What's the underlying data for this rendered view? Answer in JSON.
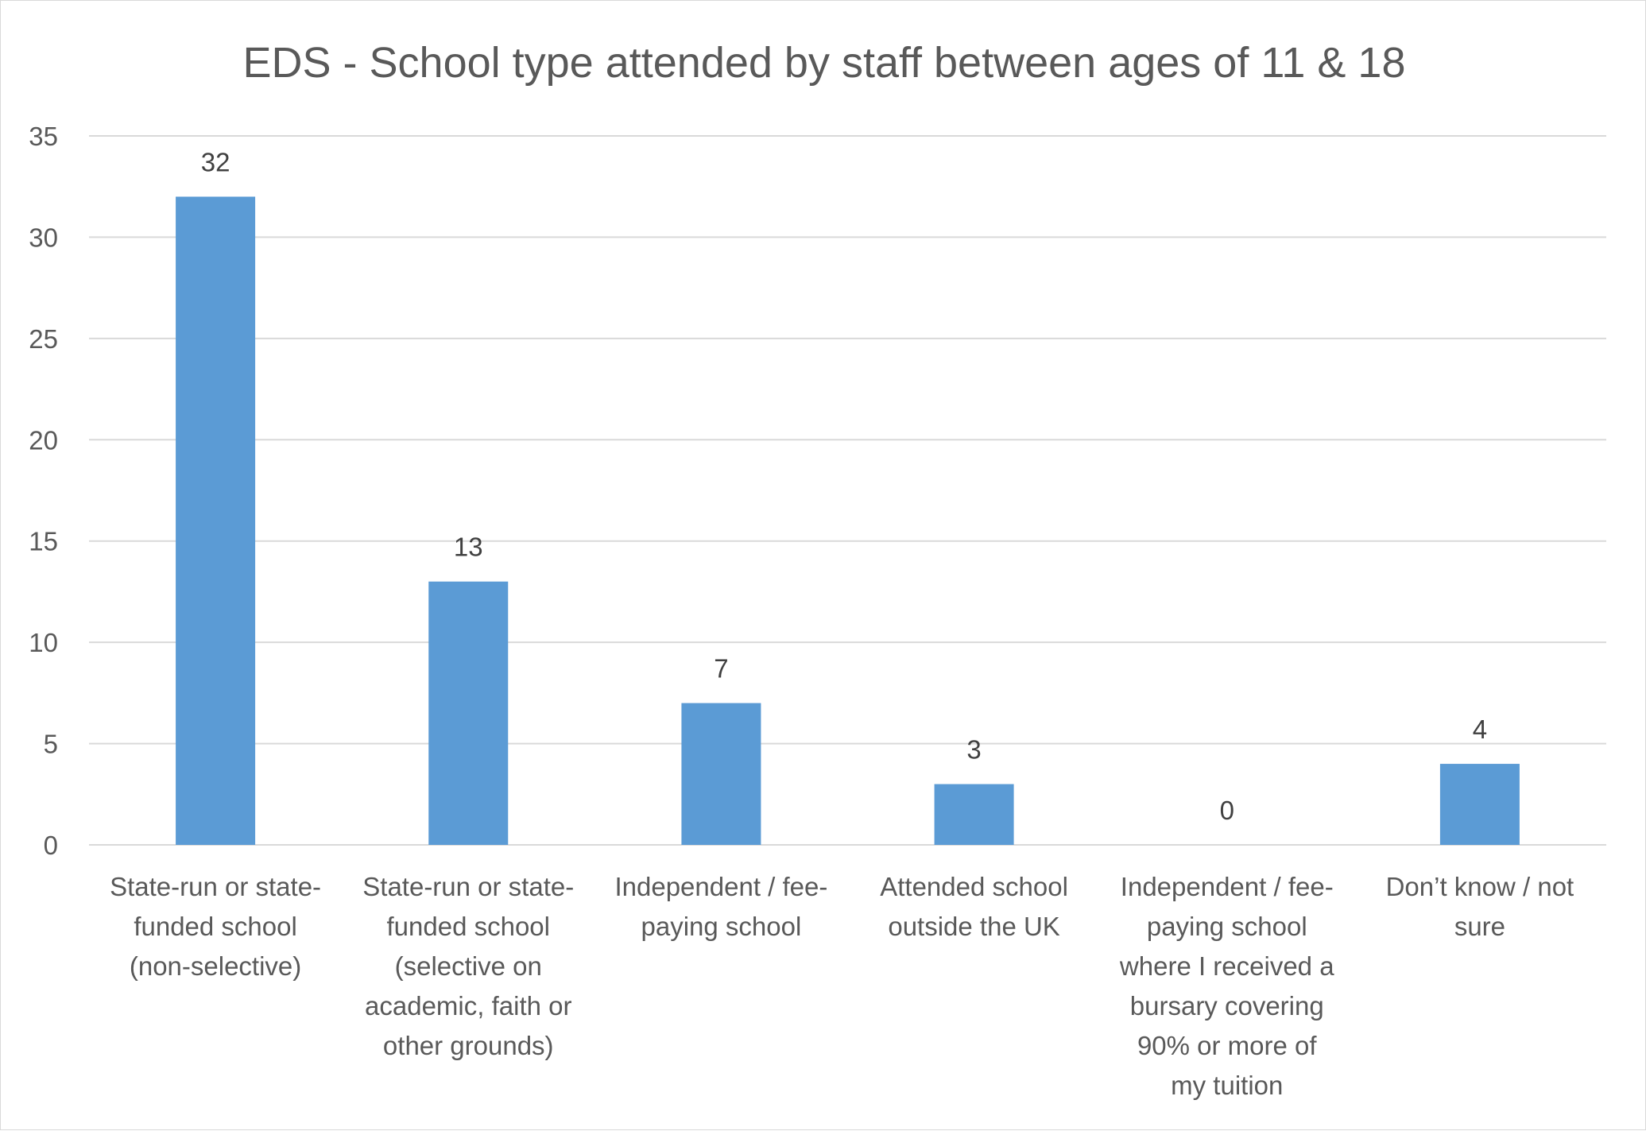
{
  "chart_data": {
    "type": "bar",
    "title": "EDS - School type attended by staff between ages of 11 & 18",
    "categories": [
      [
        "State-run or state-",
        "funded school",
        "(non-selective)"
      ],
      [
        "State-run or state-",
        "funded school",
        "(selective on",
        "academic, faith or",
        "other grounds)"
      ],
      [
        "Independent / fee-",
        "paying school"
      ],
      [
        "Attended school",
        "outside the UK"
      ],
      [
        "Independent / fee-",
        "paying school",
        "where I received a",
        "bursary covering",
        "90% or more of",
        "my tuition"
      ],
      [
        "Don’t know / not",
        "sure"
      ]
    ],
    "values": [
      32,
      13,
      7,
      3,
      0,
      4
    ],
    "data_labels": [
      "32",
      "13",
      "7",
      "3",
      "0",
      "4"
    ],
    "ylim": [
      0,
      35
    ],
    "yticks": [
      0,
      5,
      10,
      15,
      20,
      25,
      30,
      35
    ],
    "xlabel": "",
    "ylabel": "",
    "grid": true,
    "legend": "none",
    "bar_color": "#5b9bd5"
  }
}
